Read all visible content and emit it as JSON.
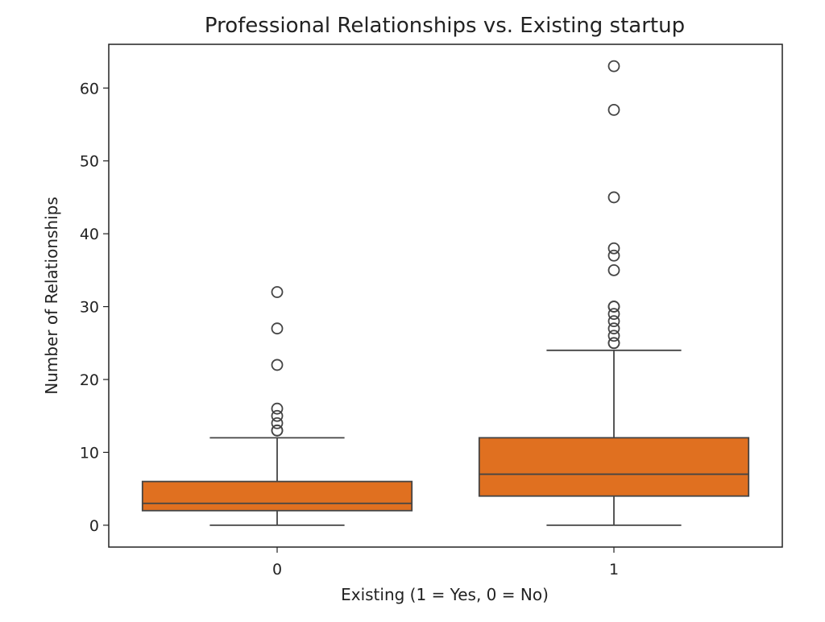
{
  "chart_data": {
    "type": "box",
    "title": "Professional Relationships vs. Existing startup",
    "xlabel": "Existing (1 = Yes, 0 = No)",
    "ylabel": "Number of Relationships",
    "categories": [
      "0",
      "1"
    ],
    "ylim": [
      -3,
      66
    ],
    "yticks": [
      0,
      10,
      20,
      30,
      40,
      50,
      60
    ],
    "grid": false,
    "box_color": "#e07020",
    "line_color": "#444444",
    "boxes": [
      {
        "category": "0",
        "whisker_low": 0,
        "q1": 2,
        "median": 3,
        "q3": 6,
        "whisker_high": 12,
        "outliers": [
          13,
          13,
          14,
          15,
          16,
          22,
          27,
          32
        ]
      },
      {
        "category": "1",
        "whisker_low": 0,
        "q1": 4,
        "median": 7,
        "q3": 12,
        "whisker_high": 24,
        "outliers": [
          25,
          25,
          26,
          27,
          28,
          29,
          30,
          30,
          35,
          37,
          38,
          45,
          57,
          63
        ]
      }
    ]
  }
}
